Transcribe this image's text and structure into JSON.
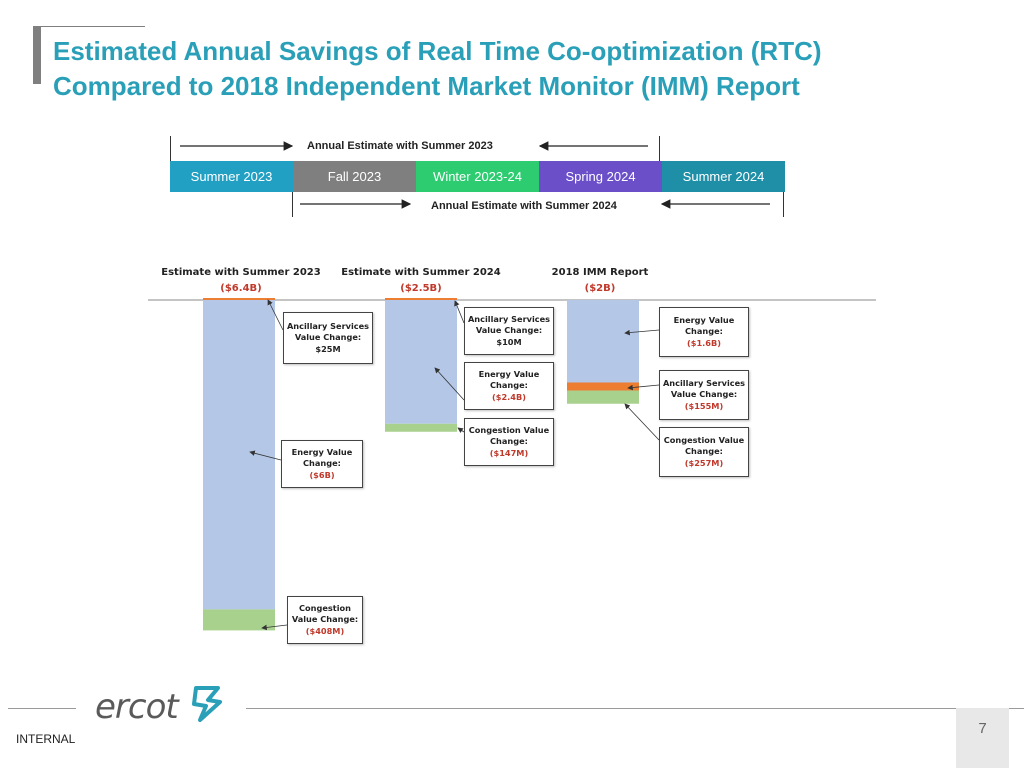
{
  "slide": {
    "title_line1": "Estimated Annual Savings of Real Time Co-optimization (RTC)",
    "title_line2": "Compared to 2018 Independent Market Monitor (IMM) Report",
    "page_number": "7",
    "classification": "INTERNAL",
    "logo_text": "ercot"
  },
  "timeline": {
    "top_label": "Annual Estimate with Summer 2023",
    "bottom_label": "Annual Estimate with Summer 2024",
    "seasons": [
      {
        "label": "Summer 2023",
        "color": "#21a0c4"
      },
      {
        "label": "Fall 2023",
        "color": "#7f7f7f"
      },
      {
        "label": "Winter 2023-24",
        "color": "#2ecc71"
      },
      {
        "label": "Spring 2024",
        "color": "#6a4fc9"
      },
      {
        "label": "Summer 2024",
        "color": "#1e8fa6"
      }
    ]
  },
  "colors": {
    "title": "#2a9fb8",
    "energy": "#b4c7e7",
    "ancillary": "#ed7d31",
    "congestion": "#a9d18e",
    "negative_value": "#c0392b"
  },
  "chart_data": {
    "type": "bar",
    "stacked": true,
    "orientation": "downward from zero baseline",
    "categories": [
      "Estimate with Summer 2023",
      "Estimate with Summer 2024",
      "2018 IMM Report"
    ],
    "totals": [
      "($6.4B)",
      "($2.5B)",
      "($2B)"
    ],
    "total_values_musd": [
      -6400,
      -2500,
      -2000
    ],
    "series": [
      {
        "name": "Energy",
        "values_musd": [
          -6000,
          -2400,
          -1600
        ]
      },
      {
        "name": "Ancillary Services",
        "values_musd": [
          25,
          10,
          -155
        ]
      },
      {
        "name": "Congestion",
        "values_musd": [
          -408,
          -147,
          -257
        ]
      }
    ],
    "callouts": [
      [
        {
          "label": "Ancillary Services Value Change:",
          "value": "$25M",
          "negative": false
        },
        {
          "label": "Energy Value Change:",
          "value": "($6B)",
          "negative": true
        },
        {
          "label": "Congestion Value Change:",
          "value": "($408M)",
          "negative": true
        }
      ],
      [
        {
          "label": "Ancillary Services Value Change:",
          "value": "$10M",
          "negative": false
        },
        {
          "label": "Energy Value Change:",
          "value": "($2.4B)",
          "negative": true
        },
        {
          "label": "Congestion Value Change:",
          "value": "($147M)",
          "negative": true
        }
      ],
      [
        {
          "label": "Energy Value Change:",
          "value": "($1.6B)",
          "negative": true
        },
        {
          "label": "Ancillary Services Value Change:",
          "value": "($155M)",
          "negative": true
        },
        {
          "label": "Congestion Value Change:",
          "value": "($257M)",
          "negative": true
        }
      ]
    ]
  }
}
